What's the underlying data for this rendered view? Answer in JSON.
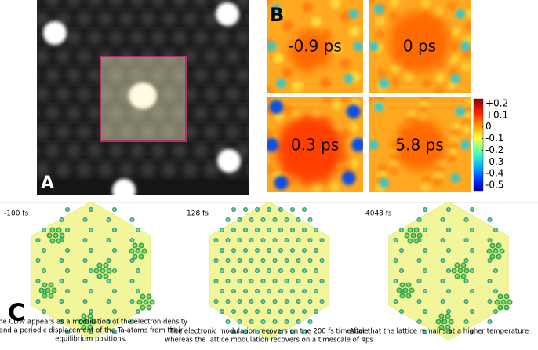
{
  "panel_a": {
    "label": "A"
  },
  "panel_b": {
    "label": "B",
    "frames": [
      "-0.9 ps",
      "0 ps",
      "0.3 ps",
      "5.8 ps"
    ],
    "colorbar_ticks": [
      "+0.2",
      "+0.1",
      "0",
      "-0.1",
      "-0.2",
      "-0.3",
      "-0.4",
      "-0.5"
    ]
  },
  "panel_c": {
    "label": "C",
    "frames": [
      {
        "time": "-100 fs",
        "caption": [
          "The CDW appears as a modulation of the electron density",
          "and a periodic displacement of the Ta-atoms from their",
          "equilibrium positions."
        ]
      },
      {
        "time": "128 fs",
        "caption": [
          "The electronic modulation recovers on the 200 fs timescale",
          "whereas the lattice modulation recovers on a timescale of 4ps"
        ]
      },
      {
        "time": "4043 fs",
        "caption": [
          "After that the lattice remains at a higher temperature"
        ]
      }
    ]
  }
}
